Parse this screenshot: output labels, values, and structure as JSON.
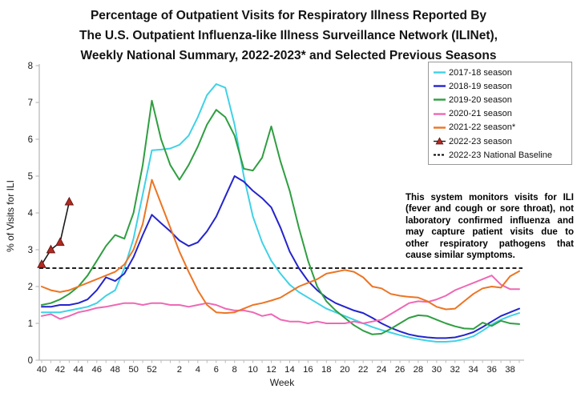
{
  "chart_data": {
    "type": "line",
    "title_lines": [
      "Percentage of Outpatient Visits for Respiratory Illness Reported By",
      "The U.S. Outpatient Influenza-like Illness Surveillance Network (ILINet),",
      "Weekly National Summary, 2022-2023* and Selected Previous Seasons"
    ],
    "ylabel": "% of Visits for ILI",
    "xlabel": "Week",
    "ylim": [
      0,
      8
    ],
    "yticks": [
      0,
      1,
      2,
      3,
      4,
      5,
      6,
      7,
      8
    ],
    "grid": false,
    "legend_position": "top-right",
    "axis_color": "#bbbbbb",
    "tick_text_color": "#1a1a1a",
    "weeks": [
      40,
      41,
      42,
      43,
      44,
      45,
      46,
      47,
      48,
      49,
      50,
      51,
      52,
      53,
      1,
      2,
      3,
      4,
      5,
      6,
      7,
      8,
      9,
      10,
      11,
      12,
      13,
      14,
      15,
      16,
      17,
      18,
      19,
      20,
      21,
      22,
      23,
      24,
      25,
      26,
      27,
      28,
      29,
      30,
      31,
      32,
      33,
      34,
      35,
      36,
      37,
      38,
      39
    ],
    "xtick_labels": [
      40,
      42,
      44,
      46,
      48,
      50,
      52,
      2,
      4,
      6,
      8,
      10,
      12,
      14,
      16,
      18,
      20,
      22,
      24,
      26,
      28,
      30,
      32,
      34,
      36,
      38
    ],
    "baseline": {
      "label": "2022-23 National Baseline",
      "value": 2.5,
      "color": "#000000",
      "style": "dashed"
    },
    "series": [
      {
        "name": "2017-18 season",
        "color": "#3fd2e6",
        "values": [
          1.3,
          1.3,
          1.3,
          1.35,
          1.4,
          1.45,
          1.55,
          1.75,
          1.9,
          2.5,
          3.3,
          4.5,
          5.7,
          5.72,
          5.75,
          5.85,
          6.1,
          6.6,
          7.2,
          7.5,
          7.4,
          6.4,
          5.0,
          3.9,
          3.2,
          2.7,
          2.35,
          2.05,
          1.85,
          1.7,
          1.55,
          1.4,
          1.3,
          1.2,
          1.1,
          1.0,
          0.9,
          0.82,
          0.75,
          0.68,
          0.62,
          0.57,
          0.53,
          0.5,
          0.5,
          0.52,
          0.57,
          0.65,
          0.8,
          0.97,
          1.1,
          1.2,
          1.28
        ]
      },
      {
        "name": "2018-19 season",
        "color": "#2424cc",
        "values": [
          1.45,
          1.45,
          1.5,
          1.5,
          1.55,
          1.65,
          1.9,
          2.25,
          2.15,
          2.35,
          2.8,
          3.4,
          3.95,
          3.72,
          3.5,
          3.25,
          3.1,
          3.2,
          3.5,
          3.9,
          4.45,
          5.0,
          4.85,
          4.6,
          4.4,
          4.15,
          3.6,
          2.95,
          2.5,
          2.15,
          1.9,
          1.7,
          1.55,
          1.45,
          1.35,
          1.28,
          1.15,
          1.0,
          0.88,
          0.78,
          0.7,
          0.65,
          0.62,
          0.6,
          0.6,
          0.62,
          0.68,
          0.76,
          0.9,
          1.05,
          1.2,
          1.3,
          1.4
        ]
      },
      {
        "name": "2019-20 season",
        "color": "#2f9e41",
        "values": [
          1.5,
          1.55,
          1.65,
          1.8,
          2.0,
          2.3,
          2.7,
          3.1,
          3.4,
          3.3,
          4.0,
          5.3,
          7.05,
          6.0,
          5.3,
          4.9,
          5.3,
          5.8,
          6.4,
          6.8,
          6.6,
          6.1,
          5.2,
          5.15,
          5.5,
          6.35,
          5.4,
          4.6,
          3.6,
          2.7,
          2.0,
          1.6,
          1.35,
          1.15,
          0.95,
          0.8,
          0.7,
          0.72,
          0.85,
          1.0,
          1.15,
          1.22,
          1.2,
          1.1,
          1.0,
          0.92,
          0.86,
          0.85,
          1.02,
          0.93,
          1.07,
          1.0,
          0.98
        ]
      },
      {
        "name": "2020-21 season",
        "color": "#ee68b4",
        "values": [
          1.2,
          1.25,
          1.12,
          1.2,
          1.3,
          1.35,
          1.42,
          1.45,
          1.5,
          1.55,
          1.55,
          1.5,
          1.55,
          1.55,
          1.5,
          1.5,
          1.45,
          1.5,
          1.55,
          1.5,
          1.4,
          1.35,
          1.35,
          1.3,
          1.2,
          1.25,
          1.1,
          1.05,
          1.05,
          1.0,
          1.05,
          1.0,
          1.0,
          1.0,
          1.05,
          1.0,
          1.05,
          1.1,
          1.25,
          1.4,
          1.55,
          1.6,
          1.58,
          1.65,
          1.75,
          1.9,
          2.0,
          2.1,
          2.2,
          2.3,
          2.05,
          1.93,
          1.93
        ]
      },
      {
        "name": "2021-22 season*",
        "color": "#ec7523",
        "values": [
          2.0,
          1.9,
          1.85,
          1.9,
          2.0,
          2.1,
          2.2,
          2.3,
          2.4,
          2.6,
          3.0,
          3.7,
          4.9,
          4.25,
          3.6,
          2.95,
          2.4,
          1.9,
          1.5,
          1.3,
          1.28,
          1.3,
          1.4,
          1.5,
          1.55,
          1.62,
          1.7,
          1.85,
          2.0,
          2.1,
          2.2,
          2.35,
          2.4,
          2.45,
          2.4,
          2.25,
          2.0,
          1.95,
          1.8,
          1.75,
          1.72,
          1.7,
          1.6,
          1.45,
          1.38,
          1.4,
          1.6,
          1.8,
          1.95,
          2.0,
          1.97,
          2.28,
          2.42
        ]
      },
      {
        "name": "2022-23 season",
        "color": "#b02a22",
        "marker": "triangle",
        "line_color": "#1a1a1a",
        "values": [
          2.6,
          3.0,
          3.2,
          4.3,
          null,
          null,
          null,
          null,
          null,
          null,
          null,
          null,
          null,
          null,
          null,
          null,
          null,
          null,
          null,
          null,
          null,
          null,
          null,
          null,
          null,
          null,
          null,
          null,
          null,
          null,
          null,
          null,
          null,
          null,
          null,
          null,
          null,
          null,
          null,
          null,
          null,
          null,
          null,
          null,
          null,
          null,
          null,
          null,
          null,
          null,
          null,
          null,
          null
        ]
      }
    ],
    "annotation": "This system monitors visits for ILI (fever and cough or sore throat), not laboratory confirmed influenza and may capture patient visits due to other respiratory pathogens that cause similar symptoms."
  }
}
